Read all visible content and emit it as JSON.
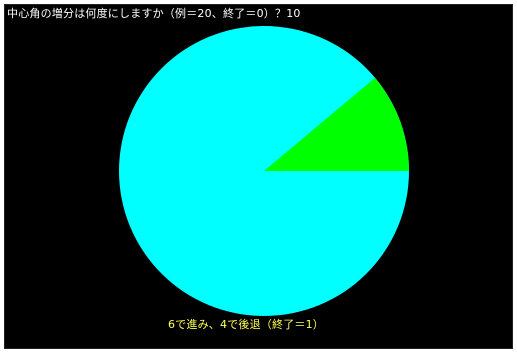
{
  "console": {
    "prompt": "中心角の増分は何度にしますか（例＝20、終了＝0）？10",
    "status": "6で進み、4で後退（終了＝1）"
  },
  "pie": {
    "highlighted_angle_deg": 40,
    "highlight_start_angle_deg": 0,
    "base_color": "#00ffff",
    "highlight_color": "#00ff00"
  },
  "colors": {
    "background": "#000000",
    "prompt_text": "#ffffff",
    "status_text": "#ffff55"
  }
}
